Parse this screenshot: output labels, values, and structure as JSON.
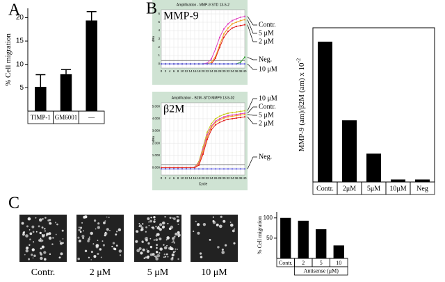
{
  "chart_data": [
    {
      "type": "bar",
      "panel": "A",
      "ylabel": "% Cell migration",
      "categories": [
        "TIMP-1",
        "GM6001",
        "—"
      ],
      "values": [
        5.2,
        7.9,
        19.4
      ],
      "errors": [
        2.6,
        1.0,
        1.9
      ],
      "color": "#000000",
      "ylim": [
        0,
        22
      ],
      "yticks": [
        5,
        10,
        15,
        20
      ]
    },
    {
      "type": "line",
      "panel": "B",
      "title": "Amplification - MMP-9 STD 13-5-2",
      "label": "MMP-9",
      "ylabel": "dRn",
      "x": [
        0,
        2,
        4,
        6,
        8,
        10,
        12,
        14,
        16,
        18,
        20,
        22,
        24,
        26,
        28,
        30,
        32,
        34,
        36,
        38,
        40
      ],
      "xlim": [
        0,
        40
      ],
      "xticks": [
        0,
        2,
        4,
        6,
        8,
        10,
        12,
        14,
        16,
        18,
        20,
        22,
        24,
        26,
        28,
        30,
        32,
        34,
        36,
        38,
        40
      ],
      "ylim": [
        -0.5,
        6.5
      ],
      "yticks": [
        0,
        1,
        2,
        3,
        4,
        5,
        6
      ],
      "threshold": 0.4,
      "series": [
        {
          "name": "Contr.",
          "color": "#e040c0",
          "values": [
            0,
            0,
            0,
            0,
            0,
            0,
            0,
            0,
            0,
            0,
            0,
            0.1,
            0.6,
            1.8,
            3.2,
            4.2,
            4.8,
            5.2,
            5.4,
            5.6,
            5.7
          ]
        },
        {
          "name": "5 μM",
          "color": "#f0a020",
          "values": [
            0,
            0,
            0,
            0,
            0,
            0,
            0,
            0,
            0,
            0,
            0,
            0,
            0.2,
            0.9,
            2.3,
            3.6,
            4.3,
            4.8,
            5.0,
            5.2,
            5.3
          ]
        },
        {
          "name": "2 μM",
          "color": "#e02020",
          "values": [
            0,
            0,
            0,
            0,
            0,
            0,
            0,
            0,
            0,
            0,
            0,
            0,
            0,
            0.7,
            2.0,
            3.2,
            3.9,
            4.3,
            4.5,
            4.6,
            4.7
          ]
        },
        {
          "name": "Neg.",
          "color": "#30a030",
          "values": [
            0,
            0,
            0,
            0,
            0,
            0,
            0,
            0,
            0,
            0,
            0,
            0,
            0,
            0,
            0,
            0,
            0,
            0,
            0,
            0.2,
            0.8
          ]
        },
        {
          "name": "10 μM",
          "color": "#6060e0",
          "values": [
            0,
            0,
            0,
            0,
            0,
            0,
            0,
            0,
            0,
            0,
            0,
            0,
            0,
            0,
            0,
            0,
            0,
            0,
            0,
            0,
            0
          ]
        }
      ]
    },
    {
      "type": "line",
      "title": "Amplification - B2M -STD MMP9 13-5-02",
      "label": "β2M",
      "xlabel": "Cycle",
      "ylabel": "dRn",
      "x": [
        0,
        2,
        4,
        6,
        8,
        10,
        12,
        14,
        16,
        18,
        20,
        22,
        24,
        26,
        28,
        30,
        32,
        34,
        36,
        38,
        40
      ],
      "xlim": [
        0,
        40
      ],
      "xticks": [
        0,
        2,
        4,
        6,
        8,
        10,
        12,
        14,
        16,
        18,
        20,
        22,
        24,
        26,
        28,
        30,
        32,
        34,
        36,
        38,
        40
      ],
      "ylim": [
        -0.6,
        5.3
      ],
      "yticks": [
        {
          "value": 0,
          "label": "0.000"
        },
        {
          "value": 1,
          "label": "1.000"
        },
        {
          "value": 2,
          "label": "2.000"
        },
        {
          "value": 3,
          "label": "3.000"
        },
        {
          "value": 4,
          "label": "4.000"
        },
        {
          "value": 5,
          "label": "5.000"
        }
      ],
      "threshold": 0.25,
      "series": [
        {
          "name": "10 μM",
          "color": "#c8c820",
          "values": [
            0,
            0,
            0,
            0,
            0,
            0,
            0,
            0,
            0.05,
            0.5,
            1.7,
            2.9,
            3.6,
            4.0,
            4.2,
            4.35,
            4.45,
            4.5,
            4.55,
            4.6,
            4.65
          ]
        },
        {
          "name": "Contr.",
          "color": "#e040c0",
          "values": [
            0,
            0,
            0,
            0,
            0,
            0,
            0,
            0,
            0.03,
            0.4,
            1.5,
            2.7,
            3.4,
            3.8,
            4.0,
            4.15,
            4.25,
            4.3,
            4.35,
            4.4,
            4.45
          ]
        },
        {
          "name": "5 μM",
          "color": "#f0a020",
          "values": [
            0,
            0,
            0,
            0,
            0,
            0,
            0,
            0,
            0,
            0.3,
            1.3,
            2.5,
            3.3,
            3.7,
            3.9,
            4.05,
            4.15,
            4.2,
            4.25,
            4.3,
            4.35
          ]
        },
        {
          "name": "2 μM",
          "color": "#e02020",
          "values": [
            0,
            0,
            0,
            0,
            0,
            0,
            0,
            0,
            0,
            0.2,
            1.1,
            2.3,
            3.1,
            3.5,
            3.7,
            3.85,
            3.95,
            4.0,
            4.05,
            4.1,
            4.15
          ]
        },
        {
          "name": "Neg.",
          "color": "#6060e0",
          "values": [
            -0.1,
            -0.1,
            -0.1,
            -0.1,
            -0.1,
            -0.1,
            -0.1,
            -0.1,
            -0.1,
            -0.1,
            -0.1,
            -0.1,
            -0.1,
            -0.1,
            -0.1,
            -0.1,
            -0.1,
            -0.1,
            -0.1,
            -0.1,
            -0.1
          ]
        }
      ]
    },
    {
      "type": "bar",
      "ylabel": "MMP-9 (am)/β2M (am) x 10",
      "ylabel_sup": "-2",
      "categories": [
        "Contr.",
        "2μM",
        "5μM",
        "10μM",
        "Neg"
      ],
      "values": [
        4.55,
        2.0,
        0.92,
        0.08,
        0.08
      ],
      "color": "#000000",
      "ylim": [
        0,
        5
      ]
    },
    {
      "type": "bar",
      "panel": "C",
      "ylabel": "% Cell migration",
      "xlabel": "Antisense (μM)",
      "categories": [
        "Contr.",
        "2",
        "5",
        "10"
      ],
      "values": [
        100,
        93,
        72,
        32
      ],
      "color": "#000000",
      "ylim": [
        0,
        115
      ],
      "yticks": [
        50,
        100
      ]
    }
  ],
  "images": [
    "Contr.",
    "2 μM",
    "5 μM",
    "10 μM"
  ]
}
